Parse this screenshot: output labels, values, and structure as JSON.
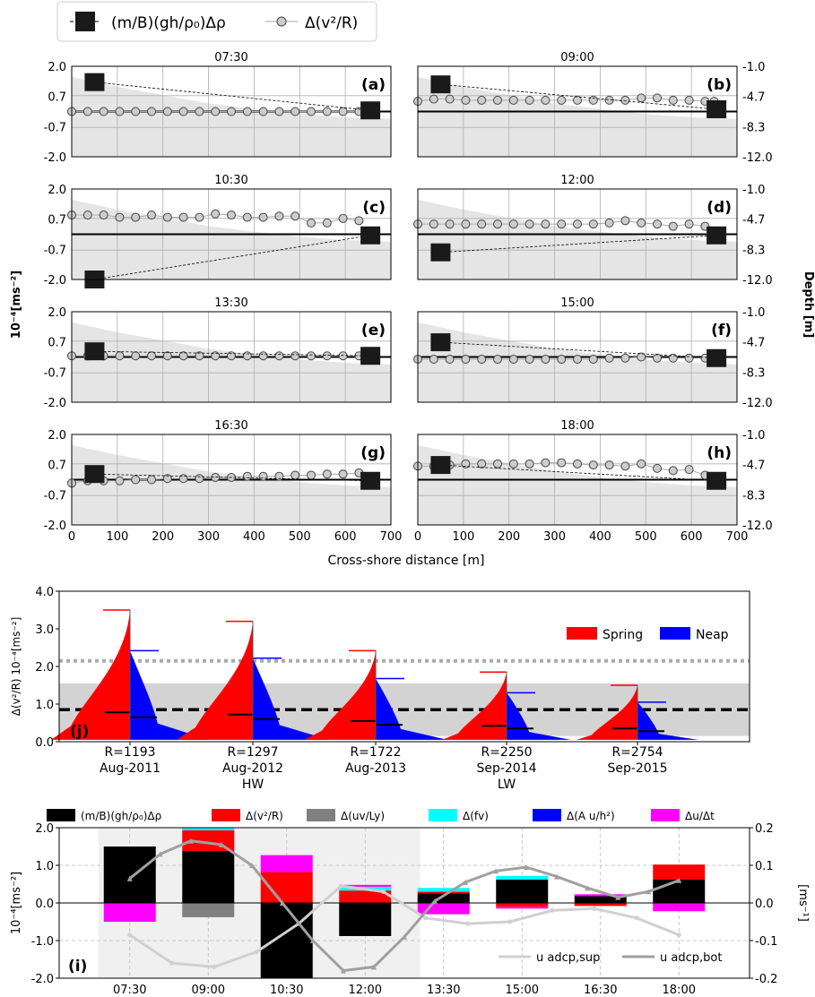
{
  "top_legend": {
    "square_label": "(m/B)(gh/ρ₀)Δρ",
    "circle_label": "Δ(v²/R)"
  },
  "shared_axes": {
    "ylabel_left": "10⁻⁴[ms⁻²]",
    "ylabel_right": "Depth [m]",
    "xlabel": "Cross-shore distance [m]",
    "xticks": [
      "0",
      "100",
      "200",
      "300",
      "400",
      "500",
      "600",
      "700"
    ],
    "yticks_left": [
      "2.0",
      "0.7",
      "-0.7",
      "-2.0"
    ],
    "yticks_right": [
      "-1.0",
      "-4.7",
      "-8.3",
      "-12.0"
    ]
  },
  "panel_j": {
    "ylabel": "Δ(v²/R) 10⁻⁴[ms⁻²]",
    "yticks": [
      "4.0",
      "3.0",
      "2.0",
      "1.0",
      "0.0"
    ],
    "categories": [
      "R=1193\nAug-2011",
      "R=1297\nAug-2012",
      "R=1722\nAug-2013",
      "R=2250\nSep-2014",
      "R=2754\nSep-2015"
    ],
    "hw_label": "HW",
    "lw_label": "LW",
    "legend": [
      "Spring",
      "Neap"
    ],
    "letter": "(j)"
  },
  "panel_i": {
    "ylabel_left": "10⁻⁴[ms⁻²]",
    "ylabel_right": "[ms⁻¹]",
    "yticks_left": [
      "2.0",
      "1.0",
      "0.0",
      "-1.0",
      "-2.0"
    ],
    "yticks_right": [
      "0.2",
      "0.1",
      "0.0",
      "-0.1",
      "-0.2"
    ],
    "times": [
      "07:30",
      "09:00",
      "10:30",
      "12:00",
      "13:30",
      "15:00",
      "16:30",
      "18:00"
    ],
    "legend": [
      "(m/B)(gh/ρ₀)Δρ",
      "Δ(v²/R)",
      "Δ(uv/Ly)",
      "Δ(fv)",
      "Δ(A u/h²)",
      "Δu/Δt"
    ],
    "line_legend": [
      "u adcp,sup",
      "u adcp,bot"
    ],
    "letter": "(i)"
  },
  "chart_data": [
    {
      "type": "line",
      "id": "a",
      "title": "07:30",
      "letter": "(a)",
      "x_circle": [
        0,
        35,
        70,
        105,
        140,
        175,
        210,
        245,
        280,
        315,
        350,
        385,
        420,
        455,
        490,
        525,
        560,
        595,
        630,
        650
      ],
      "y_circle": [
        0,
        0,
        0,
        0,
        0,
        0,
        0,
        0,
        0,
        0,
        0,
        0,
        0,
        0,
        0,
        0,
        0,
        0,
        0,
        0
      ],
      "square_points": [
        [
          50,
          1.3
        ],
        [
          655,
          0.05
        ]
      ],
      "depth_profile_top": [
        -2.3,
        -3.5,
        -4.5,
        -5.5,
        -6.2,
        -6.8,
        -7.2,
        -7.4
      ],
      "xlim": [
        0,
        700
      ],
      "ylim": [
        -2.0,
        2.0
      ],
      "y2lim": [
        -12.0,
        -1.0
      ]
    },
    {
      "type": "line",
      "id": "b",
      "title": "09:00",
      "letter": "(b)",
      "x_circle": [
        0,
        35,
        70,
        105,
        140,
        175,
        210,
        245,
        280,
        315,
        350,
        385,
        420,
        455,
        490,
        525,
        560,
        595,
        630,
        650
      ],
      "y_circle": [
        0.45,
        0.55,
        0.55,
        0.5,
        0.5,
        0.5,
        0.5,
        0.5,
        0.5,
        0.5,
        0.5,
        0.5,
        0.5,
        0.5,
        0.6,
        0.6,
        0.5,
        0.5,
        0.45,
        0.45
      ],
      "square_points": [
        [
          50,
          1.2
        ],
        [
          655,
          0.1
        ]
      ],
      "depth_profile_top": [
        -2.3,
        -3.5,
        -4.5,
        -5.5,
        -6.2,
        -6.8,
        -7.2,
        -7.4
      ],
      "xlim": [
        0,
        700
      ],
      "ylim": [
        -2.0,
        2.0
      ],
      "y2lim": [
        -12.0,
        -1.0
      ]
    },
    {
      "type": "line",
      "id": "c",
      "title": "10:30",
      "letter": "(c)",
      "x_circle": [
        0,
        35,
        70,
        105,
        140,
        175,
        210,
        245,
        280,
        315,
        350,
        385,
        420,
        455,
        490,
        525,
        560,
        595,
        630
      ],
      "y_circle": [
        0.85,
        0.85,
        0.85,
        0.75,
        0.75,
        0.85,
        0.75,
        0.75,
        0.75,
        0.9,
        0.85,
        0.75,
        0.75,
        0.8,
        0.8,
        0.5,
        0.5,
        0.7,
        0.6
      ],
      "square_points": [
        [
          50,
          -2.0
        ],
        [
          655,
          -0.05
        ]
      ],
      "depth_profile_top": [
        -2.3,
        -3.5,
        -4.5,
        -5.5,
        -6.2,
        -6.8,
        -7.2,
        -7.4
      ],
      "xlim": [
        0,
        700
      ],
      "ylim": [
        -2.0,
        2.0
      ],
      "y2lim": [
        -12.0,
        -1.0
      ]
    },
    {
      "type": "line",
      "id": "d",
      "title": "12:00",
      "letter": "(d)",
      "x_circle": [
        0,
        35,
        70,
        105,
        140,
        175,
        210,
        245,
        280,
        315,
        350,
        385,
        420,
        455,
        490,
        525,
        560,
        595,
        630
      ],
      "y_circle": [
        0.45,
        0.45,
        0.45,
        0.45,
        0.45,
        0.45,
        0.45,
        0.45,
        0.45,
        0.45,
        0.45,
        0.45,
        0.5,
        0.6,
        0.5,
        0.45,
        0.35,
        0.45,
        0.35
      ],
      "square_points": [
        [
          50,
          -0.8
        ],
        [
          655,
          -0.05
        ]
      ],
      "depth_profile_top": [
        -2.3,
        -3.5,
        -4.5,
        -5.5,
        -6.2,
        -6.8,
        -7.2,
        -7.4
      ],
      "xlim": [
        0,
        700
      ],
      "ylim": [
        -2.0,
        2.0
      ],
      "y2lim": [
        -12.0,
        -1.0
      ]
    },
    {
      "type": "line",
      "id": "e",
      "title": "13:30",
      "letter": "(e)",
      "x_circle": [
        0,
        35,
        70,
        105,
        140,
        175,
        210,
        245,
        280,
        315,
        350,
        385,
        420,
        455,
        490,
        525,
        560,
        595,
        630
      ],
      "y_circle": [
        0.05,
        0.05,
        0.05,
        0.05,
        0.05,
        0.05,
        0.05,
        0.05,
        0.05,
        0.05,
        0.05,
        0.05,
        0.05,
        0.05,
        0.05,
        0.05,
        0.05,
        0.05,
        0.05
      ],
      "square_points": [
        [
          50,
          0.25
        ],
        [
          655,
          0.05
        ]
      ],
      "depth_profile_top": [
        -2.3,
        -3.5,
        -4.5,
        -5.5,
        -6.2,
        -6.8,
        -7.2,
        -7.4
      ],
      "xlim": [
        0,
        700
      ],
      "ylim": [
        -2.0,
        2.0
      ],
      "y2lim": [
        -12.0,
        -1.0
      ]
    },
    {
      "type": "line",
      "id": "f",
      "title": "15:00",
      "letter": "(f)",
      "x_circle": [
        0,
        35,
        70,
        105,
        140,
        175,
        210,
        245,
        280,
        315,
        350,
        385,
        420,
        455,
        490,
        525,
        560,
        595,
        630
      ],
      "y_circle": [
        -0.1,
        -0.1,
        -0.1,
        -0.1,
        -0.1,
        -0.1,
        -0.1,
        -0.1,
        -0.1,
        -0.1,
        -0.1,
        -0.1,
        -0.05,
        -0.05,
        0,
        -0.05,
        -0.05,
        -0.05,
        -0.05
      ],
      "square_points": [
        [
          50,
          0.65
        ],
        [
          655,
          -0.05
        ]
      ],
      "depth_profile_top": [
        -2.3,
        -3.5,
        -4.5,
        -5.5,
        -6.2,
        -6.8,
        -7.2,
        -7.4
      ],
      "xlim": [
        0,
        700
      ],
      "ylim": [
        -2.0,
        2.0
      ],
      "y2lim": [
        -12.0,
        -1.0
      ]
    },
    {
      "type": "line",
      "id": "g",
      "title": "16:30",
      "letter": "(g)",
      "x_circle": [
        0,
        35,
        70,
        105,
        140,
        175,
        210,
        245,
        280,
        315,
        350,
        385,
        420,
        455,
        490,
        525,
        560,
        595,
        630
      ],
      "y_circle": [
        -0.15,
        -0.05,
        -0.05,
        -0.05,
        0,
        0,
        0.05,
        0.05,
        0.05,
        0.1,
        0.1,
        0.15,
        0.15,
        0.15,
        0.2,
        0.2,
        0.25,
        0.25,
        0.3
      ],
      "square_points": [
        [
          50,
          0.25
        ],
        [
          655,
          -0.05
        ]
      ],
      "depth_profile_top": [
        -2.3,
        -3.5,
        -4.5,
        -5.5,
        -6.2,
        -6.8,
        -7.2,
        -7.4
      ],
      "xlim": [
        0,
        700
      ],
      "ylim": [
        -2.0,
        2.0
      ],
      "y2lim": [
        -12.0,
        -1.0
      ]
    },
    {
      "type": "line",
      "id": "h",
      "title": "18:00",
      "letter": "(h)",
      "x_circle": [
        0,
        35,
        70,
        105,
        140,
        175,
        210,
        245,
        280,
        315,
        350,
        385,
        420,
        455,
        490,
        525,
        560,
        595,
        630
      ],
      "y_circle": [
        0.6,
        0.6,
        0.65,
        0.7,
        0.7,
        0.7,
        0.7,
        0.7,
        0.75,
        0.75,
        0.7,
        0.65,
        0.65,
        0.6,
        0.7,
        0.5,
        0.4,
        0.45,
        0.2
      ],
      "square_points": [
        [
          50,
          0.65
        ],
        [
          655,
          -0.05
        ]
      ],
      "depth_profile_top": [
        -2.3,
        -3.5,
        -4.5,
        -5.5,
        -6.2,
        -6.8,
        -7.2,
        -7.4
      ],
      "xlim": [
        0,
        700
      ],
      "ylim": [
        -2.0,
        2.0
      ],
      "y2lim": [
        -12.0,
        -1.0
      ]
    },
    {
      "type": "violin",
      "id": "j",
      "categories": [
        "R=1193 Aug-2011",
        "R=1297 Aug-2012",
        "R=1722 Aug-2013",
        "R=2250 Sep-2014",
        "R=2754 Sep-2015"
      ],
      "spring_max": [
        3.5,
        3.2,
        2.42,
        1.85,
        1.5
      ],
      "spring_median": [
        0.78,
        0.72,
        0.55,
        0.42,
        0.35
      ],
      "neap_max": [
        2.42,
        2.22,
        1.68,
        1.3,
        1.05
      ],
      "neap_median": [
        0.65,
        0.6,
        0.45,
        0.35,
        0.28
      ],
      "dotted_line": 2.15,
      "dashed_line": 0.85,
      "band": [
        0.15,
        1.55
      ],
      "ylim": [
        0.0,
        4.0
      ],
      "colors": {
        "spring": "#ff0000",
        "neap": "#0000ff"
      }
    },
    {
      "type": "bar",
      "id": "i",
      "categories": [
        "07:30",
        "09:00",
        "10:30",
        "12:00",
        "13:30",
        "15:00",
        "16:30",
        "18:00"
      ],
      "series": [
        {
          "name": "(m/B)(gh/ρ₀)Δρ",
          "color": "#000000",
          "values": [
            1.5,
            1.38,
            -2.0,
            -0.88,
            0.25,
            0.62,
            0.18,
            0.62
          ]
        },
        {
          "name": "Δ(v²/R)",
          "color": "#ff0000",
          "values": [
            0.0,
            0.55,
            0.82,
            0.33,
            0.05,
            -0.1,
            -0.08,
            0.4
          ]
        },
        {
          "name": "Δ(uv/Ly)",
          "color": "#808080",
          "values": [
            0.0,
            -0.38,
            0.0,
            0.0,
            0.0,
            0.0,
            0.0,
            0.0
          ]
        },
        {
          "name": "Δ(fv)",
          "color": "#00ffff",
          "values": [
            0.0,
            0.1,
            0.0,
            0.1,
            0.1,
            0.1,
            0.0,
            0.0
          ]
        },
        {
          "name": "Δ(A u/h²)",
          "color": "#0000ff",
          "values": [
            0.0,
            0.15,
            0.0,
            0.0,
            0.0,
            0.0,
            0.0,
            0.0
          ]
        },
        {
          "name": "Δu/Δt",
          "color": "#ff00ff",
          "values": [
            -0.5,
            0.2,
            0.45,
            0.05,
            -0.3,
            -0.05,
            0.05,
            -0.22
          ]
        }
      ],
      "u_sup": [
        -0.085,
        -0.16,
        -0.17,
        -0.13,
        -0.055,
        0.045,
        0.03,
        -0.04,
        -0.055,
        -0.05,
        -0.02,
        -0.015,
        -0.04,
        -0.085
      ],
      "u_bot": [
        0.065,
        0.13,
        0.165,
        0.155,
        0.1,
        0.0,
        -0.1,
        -0.18,
        -0.17,
        -0.09,
        0.005,
        0.055,
        0.085,
        0.095,
        0.07,
        0.04,
        0.015,
        0.03,
        0.06
      ],
      "shade_range": [
        0.5,
        4.6
      ],
      "ylim": [
        -2.0,
        2.0
      ],
      "y2lim": [
        -0.2,
        0.2
      ]
    }
  ]
}
